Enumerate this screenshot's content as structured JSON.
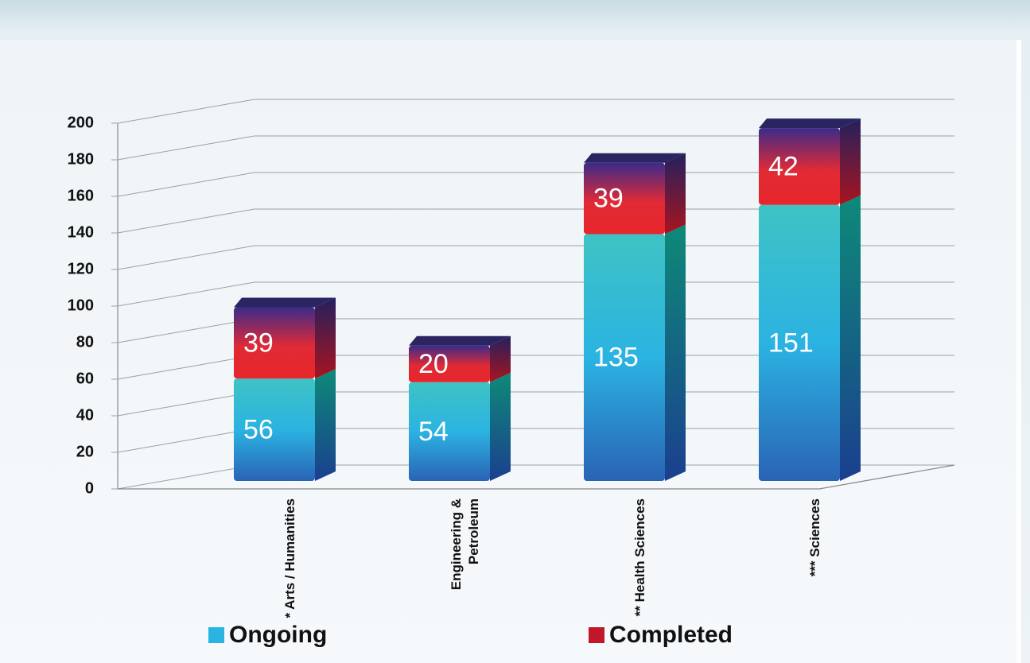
{
  "chart_data": {
    "type": "bar",
    "stacked": true,
    "categories": [
      "* Arts / Humanities",
      "Engineering & Petroleum",
      "** Health Sciences",
      "*** Sciences"
    ],
    "series": [
      {
        "name": "Ongoing",
        "color": "#2bb3e2",
        "values": [
          56,
          54,
          135,
          151
        ]
      },
      {
        "name": "Completed",
        "color": "#c0182a",
        "values": [
          39,
          20,
          39,
          42
        ]
      }
    ],
    "ylim": [
      0,
      200
    ],
    "yticks": [
      0,
      20,
      40,
      60,
      80,
      100,
      120,
      140,
      160,
      180,
      200
    ],
    "grid": true,
    "legend": "bottom"
  }
}
